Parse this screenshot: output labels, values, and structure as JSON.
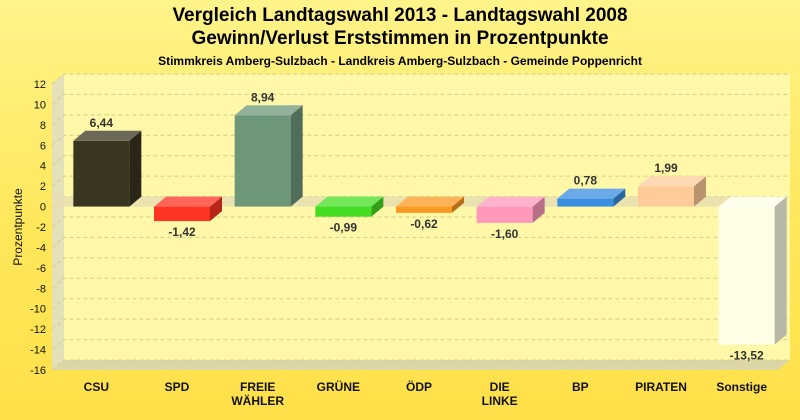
{
  "chart_data": {
    "type": "bar",
    "title": "Vergleich Landtagswahl 2013 - Landtagswahl 2008",
    "subtitle": "Gewinn/Verlust Erststimmen in Prozentpunkte",
    "subsubtitle": "Stimmkreis Amberg-Sulzbach - Landkreis Amberg-Sulzbach - Gemeinde Poppenricht",
    "xlabel": "",
    "ylabel": "Prozentpunkte",
    "ylim": [
      -16,
      12
    ],
    "yticks": [
      12,
      10,
      8,
      6,
      4,
      2,
      0,
      -2,
      -4,
      -6,
      -8,
      -10,
      -12,
      -14,
      -16
    ],
    "grid": true,
    "categories": [
      "CSU",
      "SPD",
      "FREIE WÄHLER",
      "GRÜNE",
      "ÖDP",
      "DIE LINKE",
      "BP",
      "PIRATEN",
      "Sonstige"
    ],
    "values": [
      6.44,
      -1.42,
      8.94,
      -0.99,
      -0.62,
      -1.6,
      0.78,
      1.99,
      -13.52
    ],
    "value_labels": [
      "6,44",
      "-1,42",
      "8,94",
      "-0,99",
      "-0,62",
      "-1,60",
      "0,78",
      "1,99",
      "-13,52"
    ],
    "colors": [
      "#3a3520",
      "#ff3322",
      "#6e977a",
      "#44dd22",
      "#ff9922",
      "#ff99bb",
      "#3a8ee0",
      "#ffcc99",
      "#ffffe8"
    ]
  }
}
